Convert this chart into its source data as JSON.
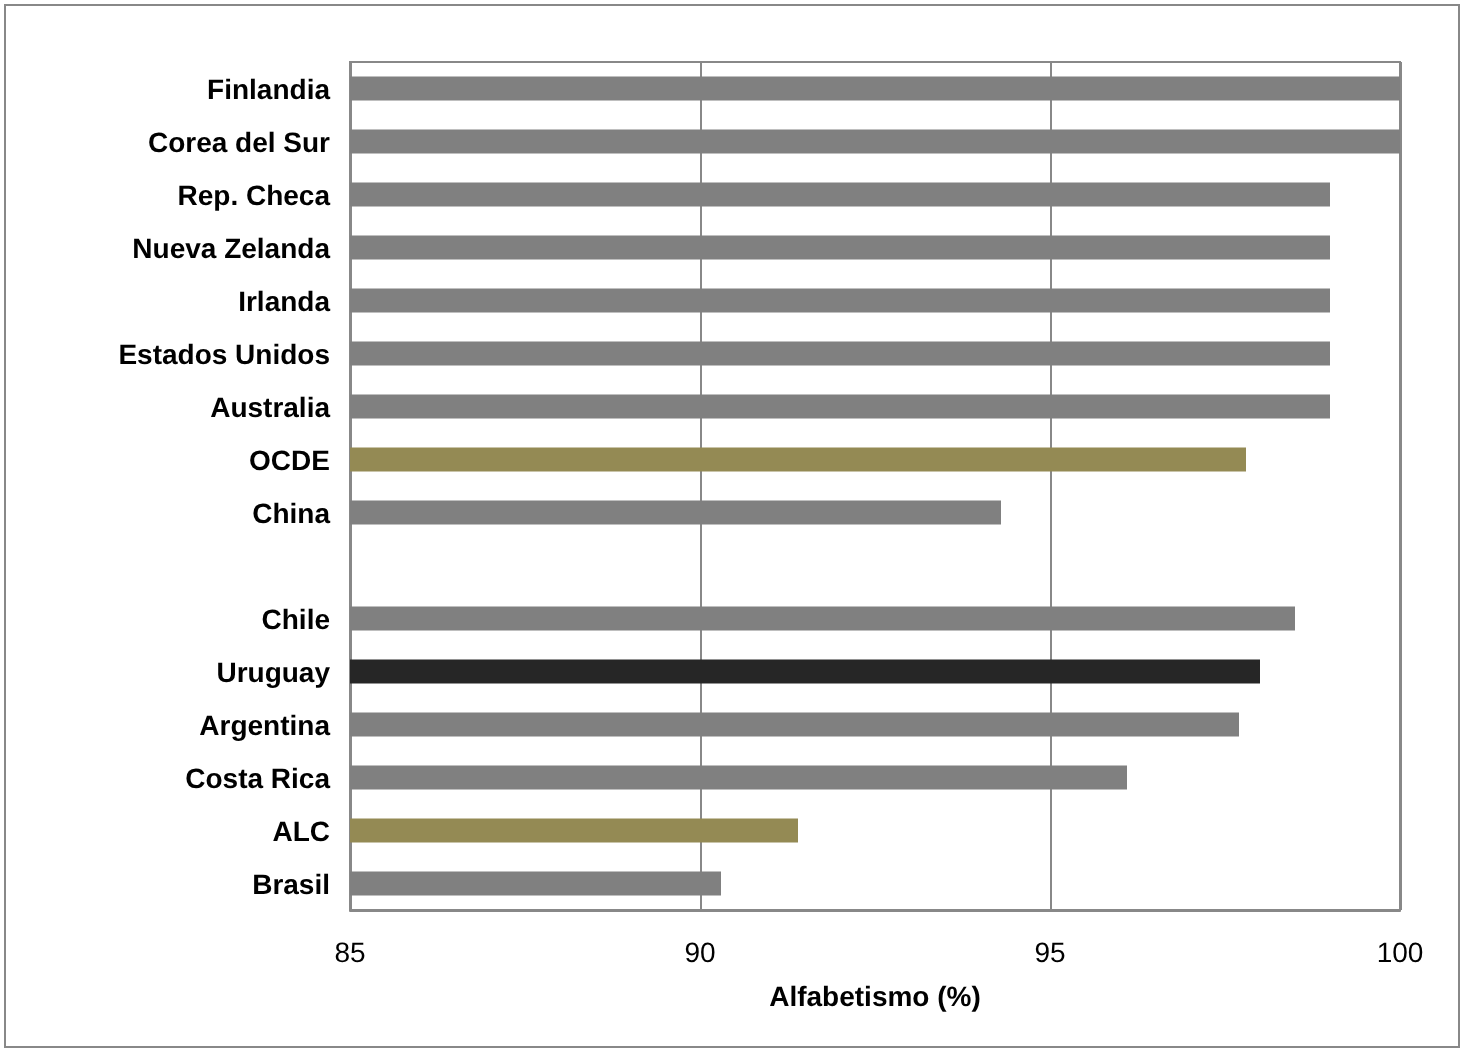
{
  "chart_data": {
    "type": "bar",
    "orientation": "horizontal",
    "xlabel": "Alfabetismo (%)",
    "categories": [
      "Finlandia",
      "Corea del Sur",
      "Rep. Checa",
      "Nueva Zelanda",
      "Irlanda",
      "Estados Unidos",
      "Australia",
      "OCDE",
      "China",
      null,
      "Chile",
      "Uruguay",
      "Argentina",
      "Costa Rica",
      "ALC",
      "Brasil"
    ],
    "values": [
      100,
      100,
      99.0,
      99.0,
      99.0,
      99.0,
      99.0,
      97.8,
      94.3,
      null,
      98.5,
      98.0,
      97.7,
      96.1,
      91.4,
      90.3
    ],
    "colors": [
      "#808080",
      "#808080",
      "#808080",
      "#808080",
      "#808080",
      "#808080",
      "#808080",
      "#948a54",
      "#808080",
      "#808080",
      "#808080",
      "#262626",
      "#808080",
      "#808080",
      "#948a54",
      "#808080"
    ],
    "xlim": [
      85,
      100
    ],
    "xticks": [
      85,
      90,
      95,
      100
    ],
    "grid": "x"
  }
}
